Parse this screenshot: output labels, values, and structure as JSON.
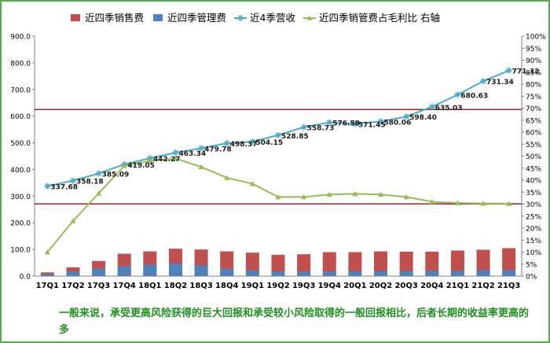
{
  "caption": "一般来说，承受更高风险获得的巨大回报和承受较小风险取得的一般回报相比，后者长期的收益率更高的多",
  "chart_data": {
    "type": "bar+line",
    "categories": [
      "17Q1",
      "17Q2",
      "17Q3",
      "17Q4",
      "18Q1",
      "18Q2",
      "18Q3",
      "18Q4",
      "19Q1",
      "19Q2",
      "19Q3",
      "19Q4",
      "20Q1",
      "20Q2",
      "20Q3",
      "20Q4",
      "21Q1",
      "21Q2",
      "21Q3"
    ],
    "left_axis": {
      "min": 0,
      "max": 900,
      "step": 100,
      "tick_labels": [
        "0.0",
        "100.0",
        "200.0",
        "300.0",
        "400.0",
        "500.0",
        "600.0",
        "700.0",
        "800.0",
        "900.0"
      ]
    },
    "right_axis": {
      "min": 0,
      "max": 100,
      "step": 5,
      "label": "右轴",
      "tick_labels": [
        "0%",
        "5%",
        "10%",
        "15%",
        "20%",
        "25%",
        "30%",
        "35%",
        "40%",
        "45%",
        "50%",
        "55%",
        "60%",
        "65%",
        "70%",
        "75%",
        "80%",
        "85%",
        "90%",
        "95%",
        "100%"
      ]
    },
    "series": [
      {
        "name": "近四季销售费",
        "type": "bar",
        "axis": "left",
        "color": "#c0504d",
        "values": [
          14,
          33,
          57,
          84,
          93,
          103,
          100,
          93,
          88,
          80,
          82,
          90,
          90,
          93,
          92,
          92,
          96,
          99,
          105
        ]
      },
      {
        "name": "近四季管理费",
        "type": "bar",
        "axis": "left",
        "color": "#4f81bd",
        "values": [
          8,
          17,
          28,
          37,
          42,
          47,
          40,
          28,
          22,
          17,
          17,
          17,
          18,
          19,
          19,
          20,
          20,
          22,
          23
        ]
      },
      {
        "name": "近4季营收",
        "type": "line",
        "axis": "left",
        "color": "#4bacc6",
        "marker": "star",
        "values": [
          337.68,
          358.18,
          385.09,
          419.05,
          442.27,
          463.34,
          479.78,
          498.37,
          504.15,
          528.85,
          558.73,
          576.58,
          571.45,
          580.06,
          598.4,
          635.03,
          680.63,
          731.34,
          771.32
        ],
        "data_labels": [
          "337.68",
          "358.18",
          "385.09",
          "419.05",
          "442.27",
          "463.34",
          "479.78",
          "498.37",
          "504.15",
          "528.85",
          "558.73",
          "576.58",
          "571.45",
          "580.06",
          "598.40",
          "635.03",
          "680.63",
          "731.34",
          "771.32"
        ]
      },
      {
        "name": "近四季销管费占毛利比 右轴",
        "type": "line",
        "axis": "right",
        "color": "#9bbb59",
        "marker": "triangle",
        "values": [
          10,
          23,
          34.5,
          46,
          48,
          49,
          45.5,
          41,
          38.5,
          33,
          33,
          34,
          34.3,
          34,
          33,
          31,
          30.5,
          30.3,
          30.2
        ]
      }
    ],
    "reference_lines": [
      {
        "value": 625,
        "color": "#943634"
      },
      {
        "value": 271,
        "color": "#943634"
      }
    ],
    "legend": "top",
    "grid": false
  }
}
